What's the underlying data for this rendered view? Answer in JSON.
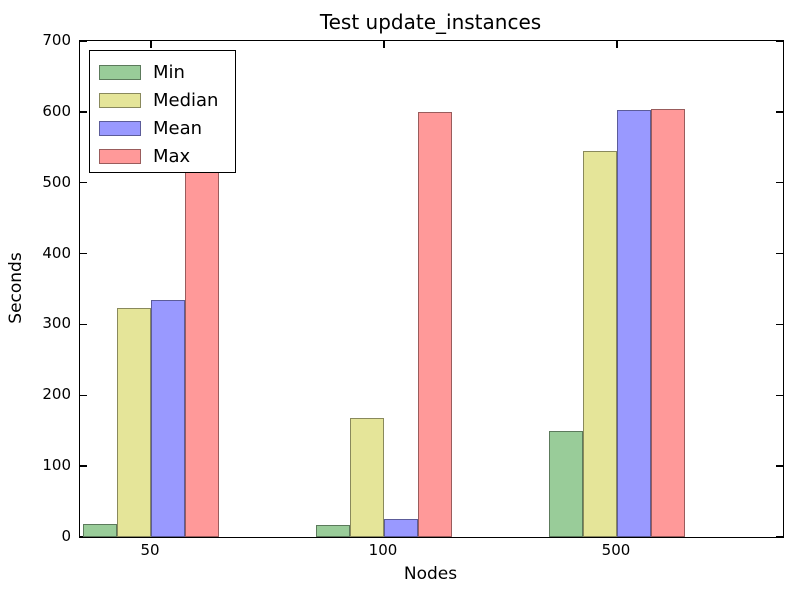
{
  "chart_data": {
    "type": "bar",
    "title": "Test update_instances",
    "xlabel": "Nodes",
    "ylabel": "Seconds",
    "categories": [
      "50",
      "100",
      "500"
    ],
    "series": [
      {
        "name": "Min",
        "color": "#99cc99",
        "values": [
          18,
          17,
          150
        ]
      },
      {
        "name": "Median",
        "color": "#e5e599",
        "values": [
          323,
          168,
          545
        ]
      },
      {
        "name": "Mean",
        "color": "#9999ff",
        "values": [
          335,
          25,
          602
        ]
      },
      {
        "name": "Max",
        "color": "#ff9999",
        "values": [
          515,
          600,
          604
        ]
      }
    ],
    "ylim": [
      0,
      700
    ],
    "yticks": [
      0,
      100,
      200,
      300,
      400,
      500,
      600,
      700
    ],
    "legend_position": "upper left",
    "grid": false,
    "edge_color": "rgba(0,0,0,0.4)"
  }
}
